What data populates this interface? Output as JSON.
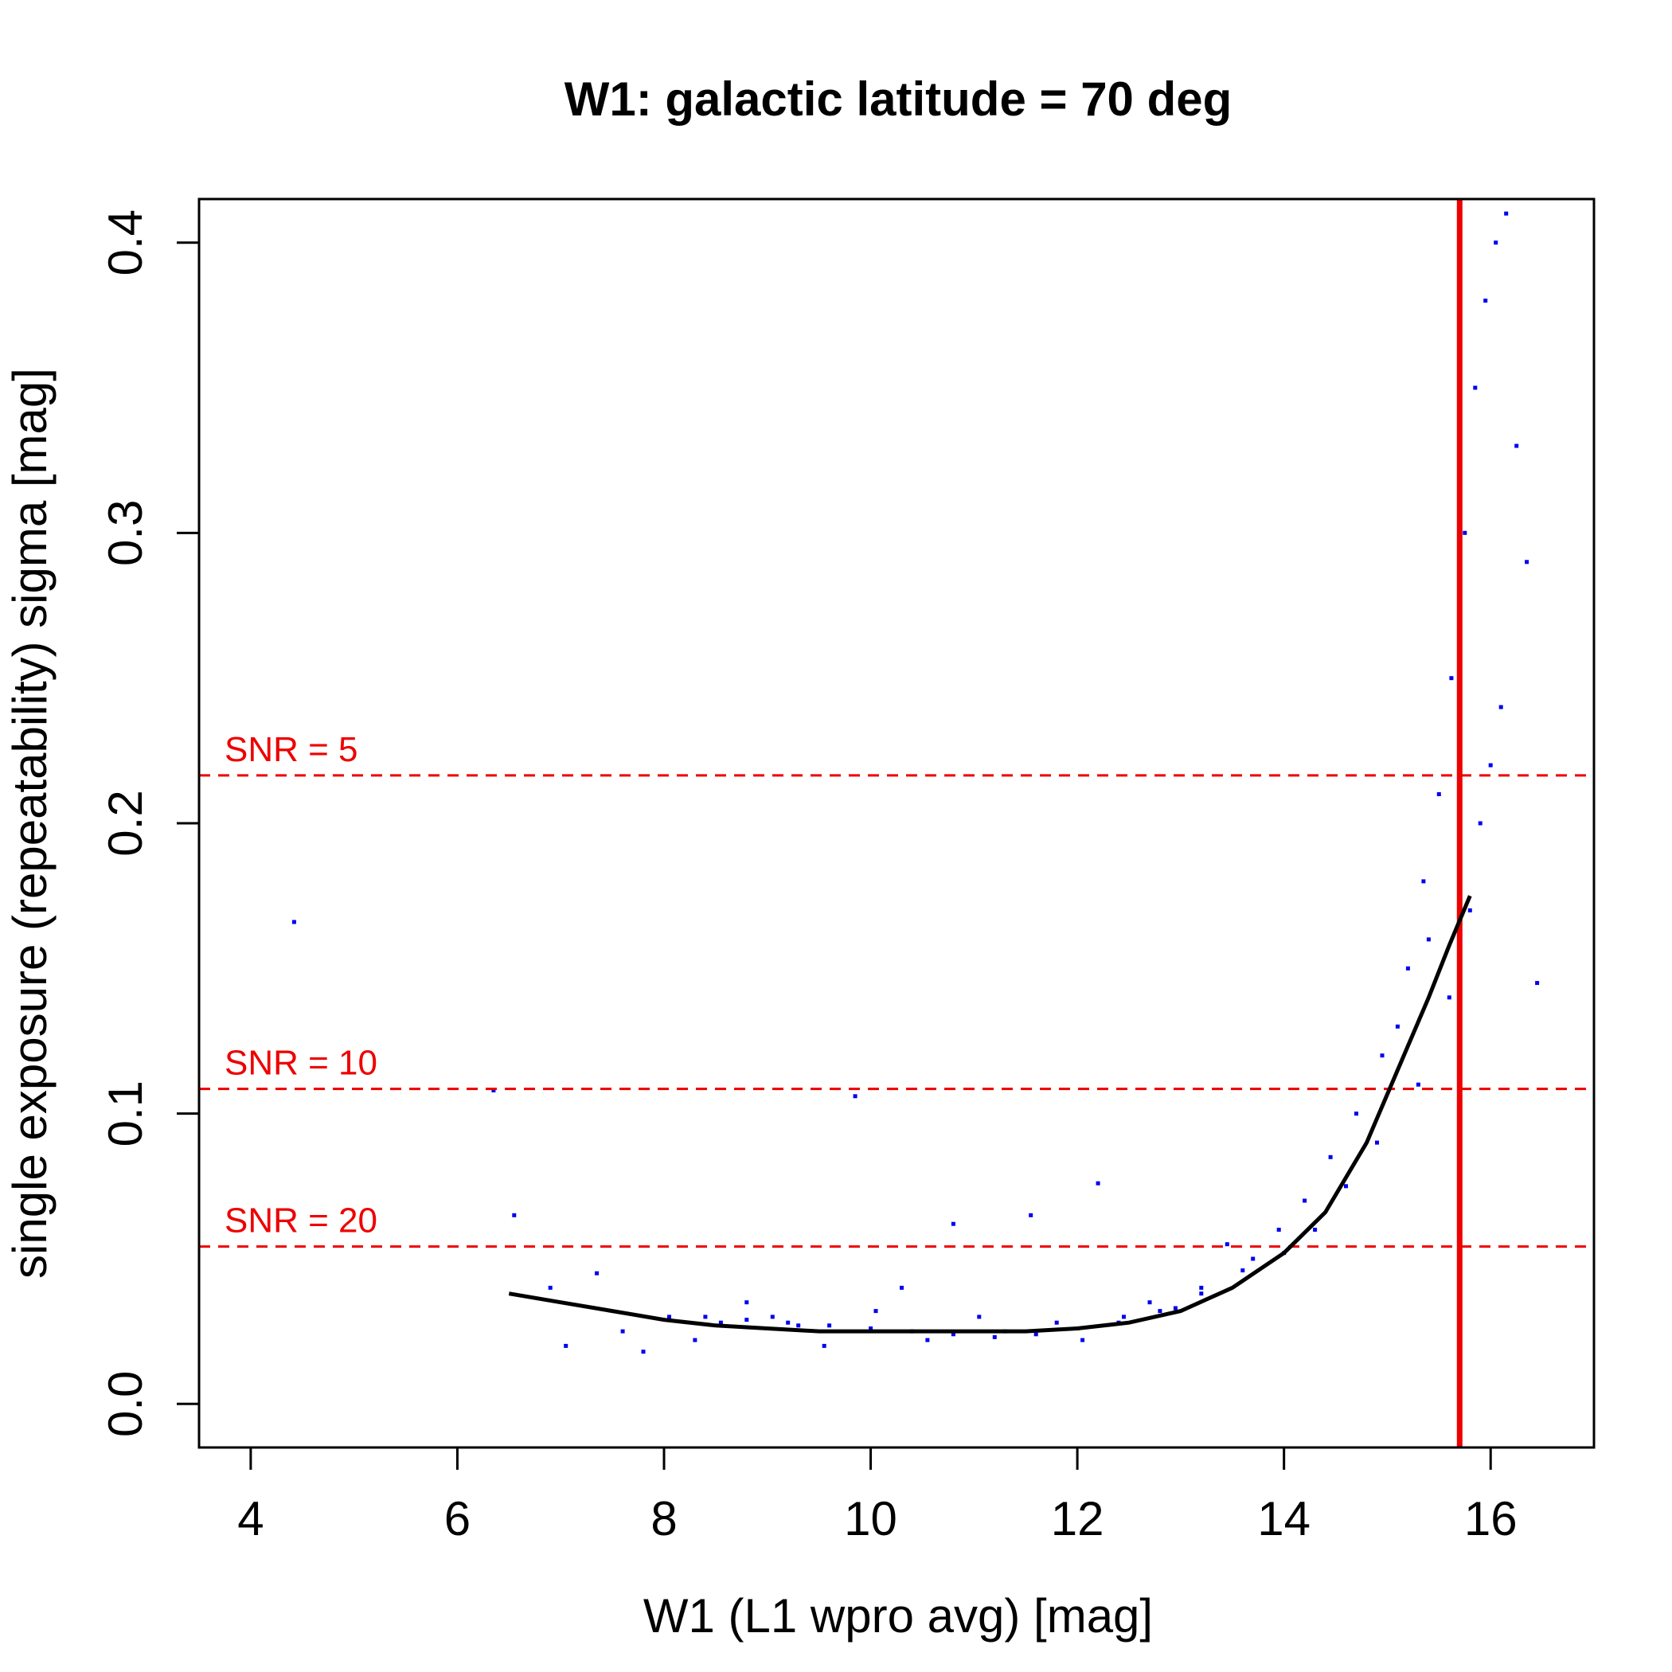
{
  "chart_data": {
    "type": "scatter",
    "title": "W1: galactic latitude = 70 deg",
    "xlabel": "W1 (L1 wpro avg) [mag]",
    "ylabel": "single exposure (repeatability) sigma [mag]",
    "xlim": [
      3.5,
      17.0
    ],
    "ylim": [
      -0.015,
      0.415
    ],
    "x_ticks": [
      4,
      6,
      8,
      10,
      12,
      14,
      16
    ],
    "x_tick_labels": [
      "4",
      "6",
      "8",
      "10",
      "12",
      "14",
      "16"
    ],
    "y_ticks": [
      0.0,
      0.1,
      0.2,
      0.3,
      0.4
    ],
    "y_tick_labels": [
      "0.0",
      "0.1",
      "0.2",
      "0.3",
      "0.4"
    ],
    "grid": false,
    "colors": {
      "points": "#0000ee",
      "reference": "#ee0000",
      "fit": "#000000"
    },
    "series": [
      {
        "kind": "scatter",
        "x": [
          4.42,
          6.35,
          6.55,
          6.9,
          7.05,
          7.35,
          7.6,
          7.8,
          8.05,
          8.3,
          8.55,
          8.8,
          9.05,
          9.3,
          9.55,
          9.85,
          10.05,
          10.3,
          10.55,
          10.8,
          11.05,
          11.3,
          11.55,
          11.8,
          12.05,
          12.2,
          12.45,
          12.7,
          12.95,
          13.2,
          13.45,
          13.7,
          13.95,
          14.2,
          14.45,
          14.7,
          14.95,
          15.2,
          15.35,
          15.5,
          15.62,
          15.75,
          15.85,
          15.95,
          16.05,
          16.15,
          16.25,
          16.35,
          16.45,
          15.8,
          15.9,
          16.0,
          16.1,
          15.7,
          15.6,
          15.4,
          15.3,
          15.1,
          14.9,
          14.6,
          14.3,
          14.0,
          13.6,
          13.2,
          12.8,
          12.4,
          12.0,
          11.6,
          11.2,
          10.8,
          10.4,
          10.0,
          9.6,
          9.2,
          8.8,
          8.4
        ],
        "y": [
          0.166,
          0.108,
          0.065,
          0.04,
          0.02,
          0.045,
          0.025,
          0.018,
          0.03,
          0.022,
          0.028,
          0.035,
          0.03,
          0.027,
          0.02,
          0.106,
          0.032,
          0.04,
          0.022,
          0.062,
          0.03,
          0.025,
          0.065,
          0.028,
          0.022,
          0.076,
          0.03,
          0.035,
          0.033,
          0.04,
          0.055,
          0.05,
          0.06,
          0.07,
          0.085,
          0.1,
          0.12,
          0.15,
          0.18,
          0.21,
          0.25,
          0.3,
          0.35,
          0.38,
          0.4,
          0.41,
          0.33,
          0.29,
          0.145,
          0.17,
          0.2,
          0.22,
          0.24,
          0.12,
          0.14,
          0.16,
          0.11,
          0.13,
          0.09,
          0.075,
          0.06,
          0.052,
          0.046,
          0.038,
          0.032,
          0.028,
          0.026,
          0.024,
          0.023,
          0.024,
          0.025,
          0.026,
          0.027,
          0.028,
          0.029,
          0.03
        ]
      },
      {
        "kind": "fit",
        "x": [
          6.5,
          7.0,
          7.5,
          8.0,
          8.5,
          9.0,
          9.5,
          10.0,
          10.5,
          11.0,
          11.5,
          12.0,
          12.5,
          13.0,
          13.5,
          14.0,
          14.4,
          14.8,
          15.1,
          15.4,
          15.6,
          15.8
        ],
        "y": [
          0.038,
          0.035,
          0.032,
          0.029,
          0.027,
          0.026,
          0.025,
          0.025,
          0.025,
          0.025,
          0.025,
          0.026,
          0.028,
          0.032,
          0.04,
          0.052,
          0.066,
          0.09,
          0.115,
          0.14,
          0.158,
          0.175
        ]
      }
    ],
    "reference_lines": [
      {
        "orientation": "horizontal",
        "value": 0.2165,
        "style": "dashed",
        "label": "SNR = 5"
      },
      {
        "orientation": "horizontal",
        "value": 0.1085,
        "style": "dashed",
        "label": "SNR = 10"
      },
      {
        "orientation": "horizontal",
        "value": 0.0542,
        "style": "dashed",
        "label": "SNR = 20"
      },
      {
        "orientation": "vertical",
        "value": 15.7,
        "style": "solid",
        "label": ""
      }
    ]
  }
}
